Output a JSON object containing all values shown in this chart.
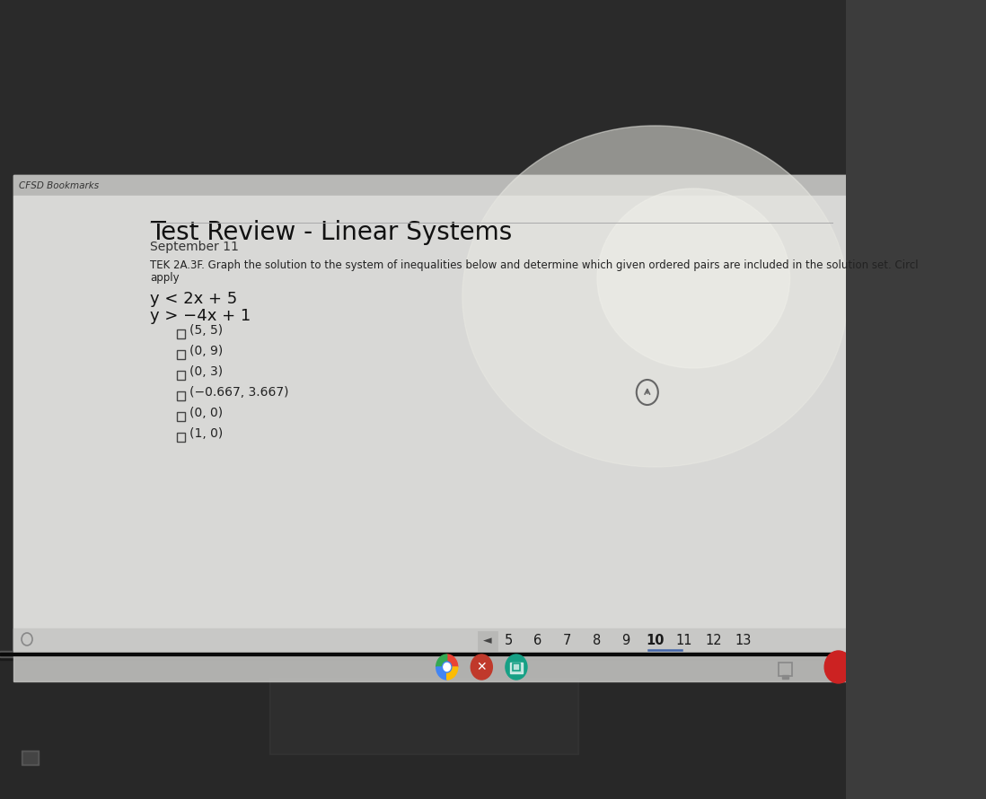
{
  "browser_tab": "CFSD Bookmarks",
  "title": "Test Review - Linear Systems",
  "date": "September 11",
  "tek_line1": "TEK 2A.3F. Graph the solution to the system of inequalities below and determine which given ordered pairs are included in the solution set. Circl",
  "tek_line2": "apply",
  "inequality1": "y < 2x + 5",
  "inequality2": "y > −4x + 1",
  "ordered_pairs": [
    "(5, 5)",
    "(0, 9)",
    "(0, 3)",
    "(−0.667, 3.667)",
    "(0, 0)",
    "(1, 0)"
  ],
  "pagination": [
    "5",
    "6",
    "7",
    "8",
    "9",
    "10",
    "11",
    "12",
    "13"
  ],
  "current_page": "10",
  "screen_light_bg": "#d4d4d2",
  "screen_dark_bg": "#1a1a1a",
  "browser_bar_color": "#c8c8c6",
  "content_bg": "#d0d0ce",
  "text_dark": "#1a1a1a",
  "text_medium": "#333333",
  "text_light": "#555555",
  "laptop_body": "#3c3c3c",
  "laptop_dark": "#181818",
  "pagination_bar_bg": "#c0c0be",
  "arrow_btn_bg": "#b0b0ae",
  "reflection_color": "#e8e8e4",
  "chrome_red": "#ea4335",
  "chrome_green": "#34a853",
  "chrome_blue": "#4285f4",
  "chrome_yellow": "#fbbc05",
  "icon2_color": "#c0392b",
  "icon3_color": "#16a085",
  "icon_right1": "#888888",
  "icon_right2": "#cc2222"
}
